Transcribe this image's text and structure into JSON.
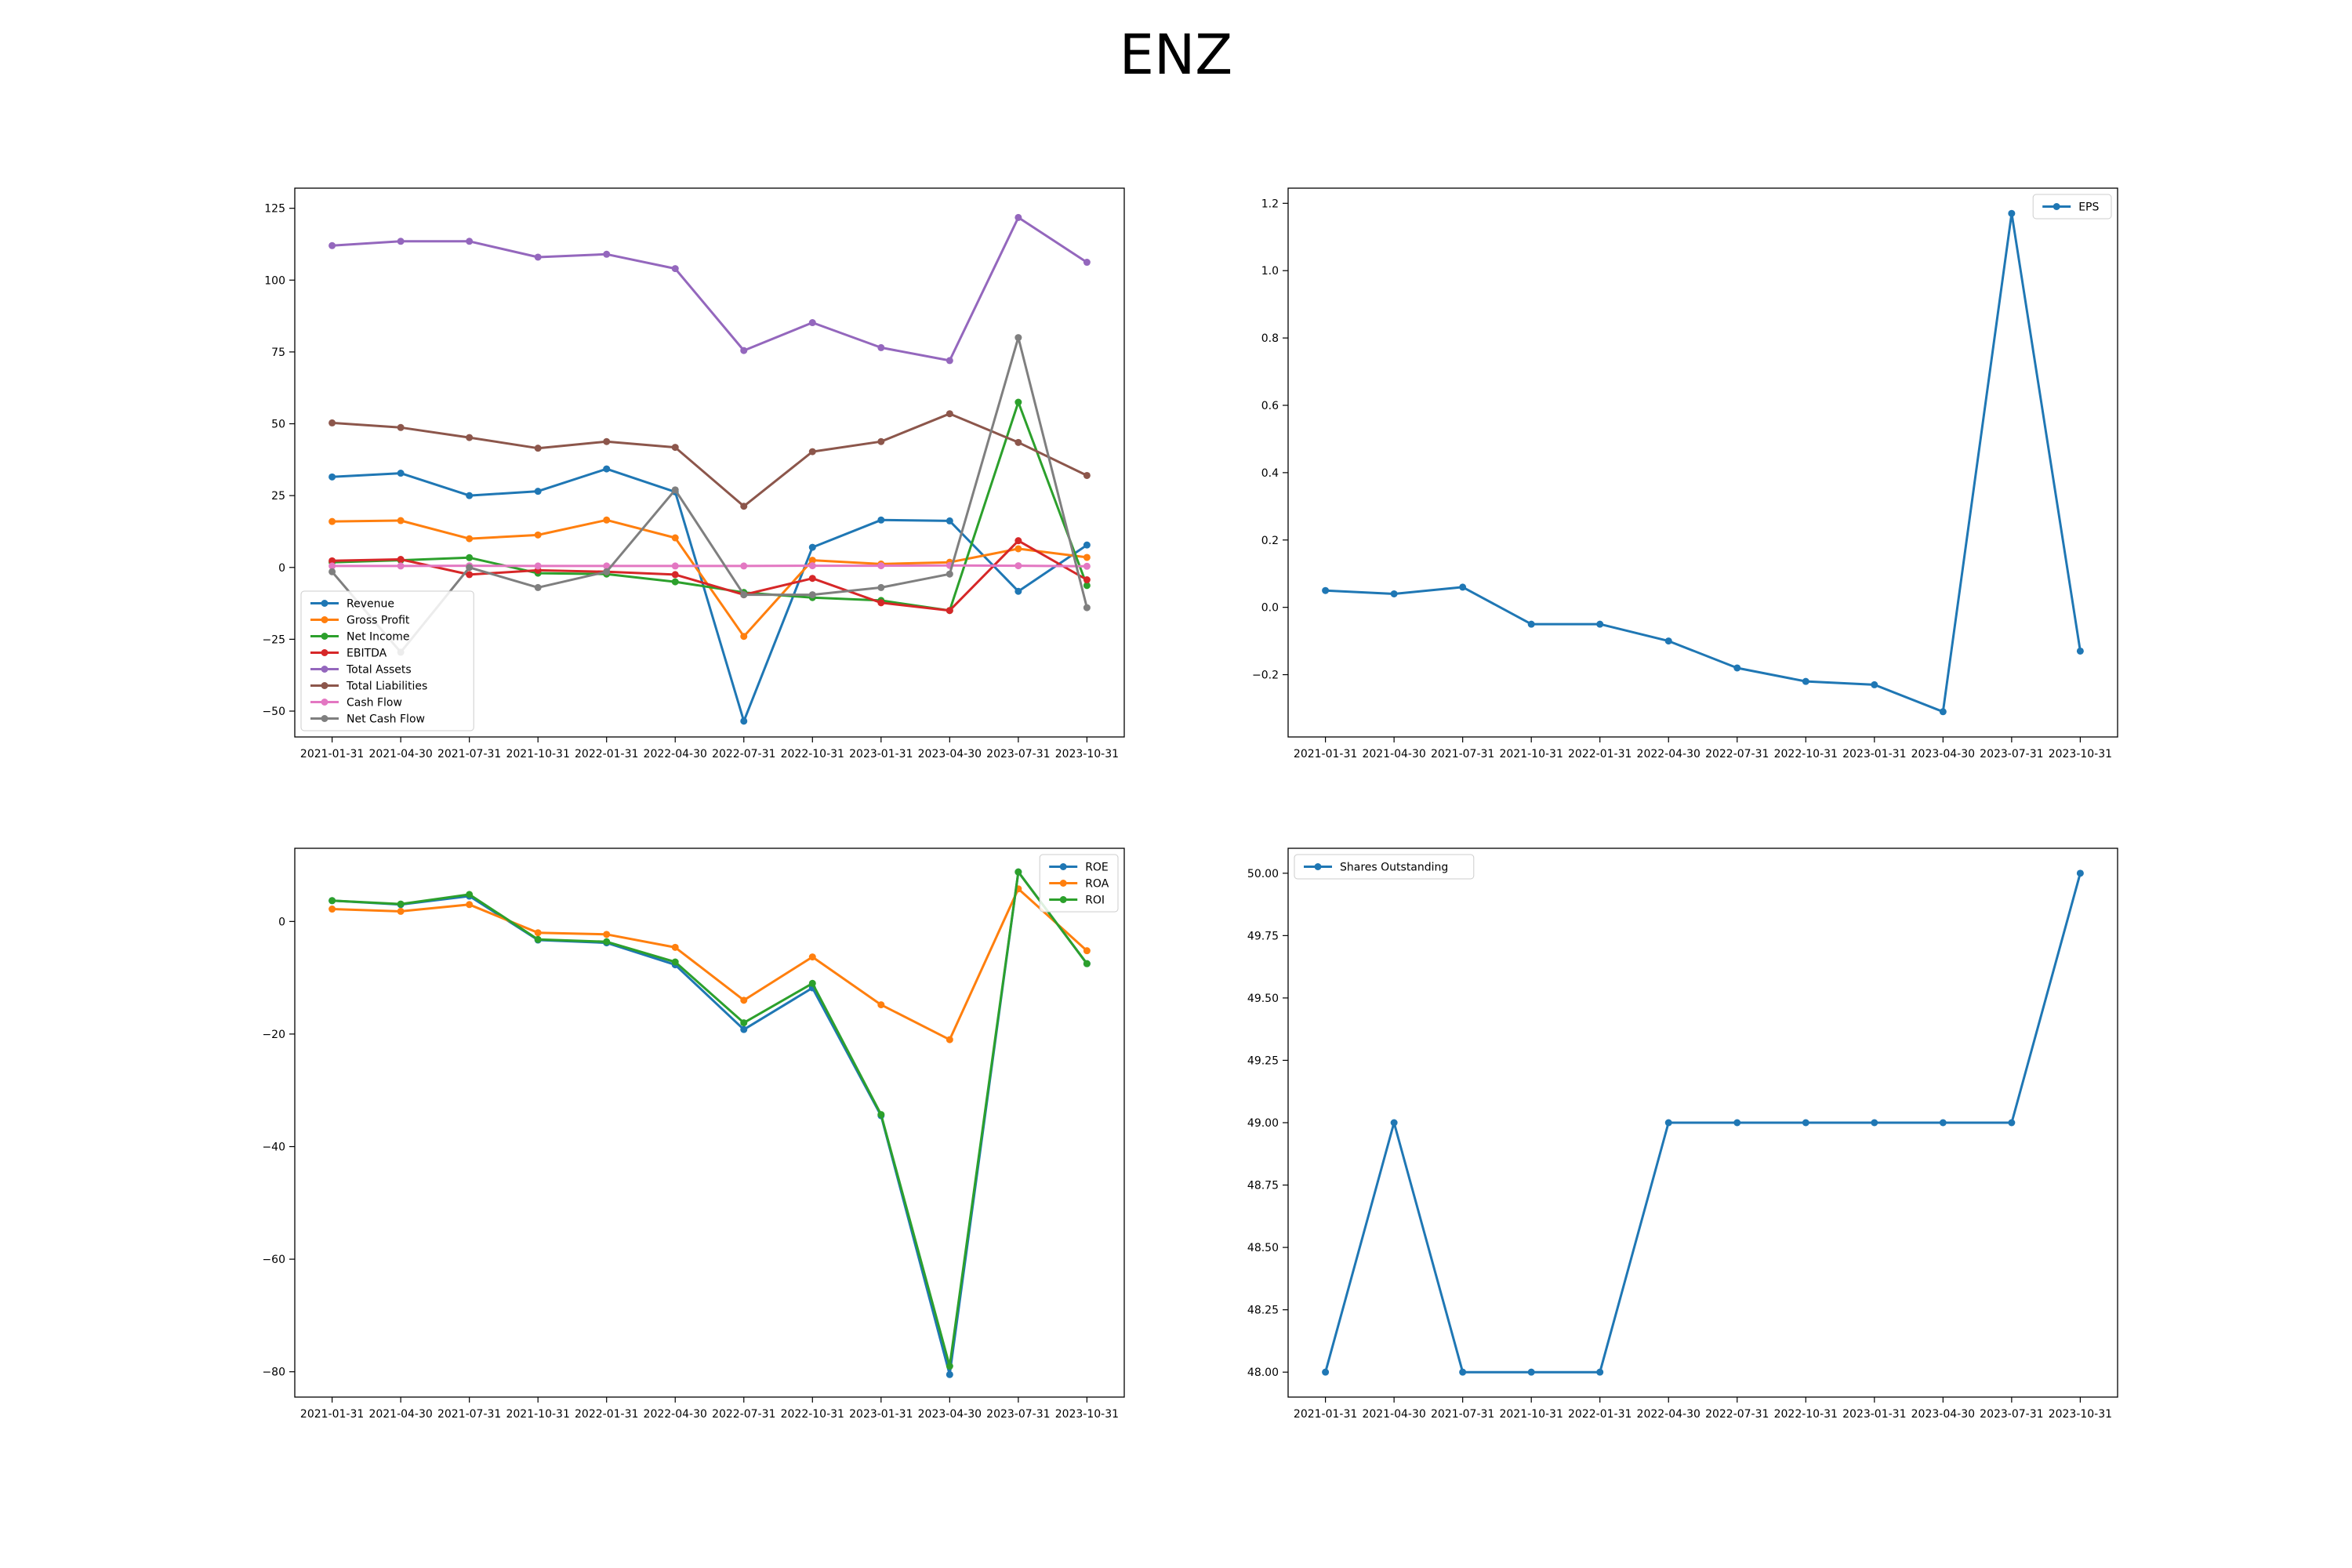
{
  "figure": {
    "title": "ENZ"
  },
  "chart_data": [
    {
      "type": "line",
      "x": [
        "2021-01-31",
        "2021-04-30",
        "2021-07-31",
        "2021-10-31",
        "2022-01-31",
        "2022-04-30",
        "2022-07-31",
        "2022-10-31",
        "2023-01-31",
        "2023-04-30",
        "2023-07-31",
        "2023-10-31"
      ],
      "yticks": [
        -50,
        -25,
        0,
        25,
        50,
        75,
        100,
        125
      ],
      "ylim": [
        -59,
        132
      ],
      "ytick_decimals": 0,
      "legend": "lower-left",
      "grid": false,
      "series": [
        {
          "name": "Revenue",
          "color": "#1f77b4",
          "values": [
            31.5,
            32.8,
            25,
            26.5,
            34.3,
            26.3,
            -53.5,
            7,
            16.5,
            16.2,
            -8.3,
            7.8
          ]
        },
        {
          "name": "Gross Profit",
          "color": "#ff7f0e",
          "values": [
            16,
            16.3,
            10,
            11.3,
            16.5,
            10.3,
            -24,
            2.5,
            1.2,
            1.8,
            6.5,
            3.5
          ]
        },
        {
          "name": "Net Income",
          "color": "#2ca02c",
          "values": [
            1.8,
            2.5,
            3.4,
            -2,
            -2.3,
            -5,
            -8.7,
            -10.5,
            -11.5,
            -15,
            57.5,
            -6.3
          ]
        },
        {
          "name": "EBITDA",
          "color": "#d62728",
          "values": [
            2.3,
            2.8,
            -2.5,
            -1,
            -1.5,
            -2.5,
            -9.5,
            -3.8,
            -12.3,
            -15,
            9.3,
            -4.3
          ]
        },
        {
          "name": "Total Assets",
          "color": "#9467bd",
          "values": [
            112,
            113.5,
            113.5,
            108,
            109,
            104,
            75.5,
            85.2,
            76.5,
            72,
            121.8,
            106.2
          ]
        },
        {
          "name": "Total Liabilities",
          "color": "#8c564b",
          "values": [
            50.3,
            48.7,
            45.2,
            41.5,
            43.8,
            41.8,
            21.3,
            40.3,
            43.8,
            53.5,
            43.5,
            32
          ]
        },
        {
          "name": "Cash Flow",
          "color": "#e377c2",
          "values": [
            0.5,
            0.5,
            0.6,
            0.5,
            0.5,
            0.5,
            0.5,
            0.6,
            0.6,
            0.7,
            0.6,
            0.4
          ]
        },
        {
          "name": "Net Cash Flow",
          "color": "#7f7f7f",
          "values": [
            -1.5,
            -29.5,
            0,
            -7,
            -1.5,
            27,
            -9.5,
            -9.5,
            -7,
            -2.3,
            80,
            -14
          ]
        }
      ]
    },
    {
      "type": "line",
      "x": [
        "2021-01-31",
        "2021-04-30",
        "2021-07-31",
        "2021-10-31",
        "2022-01-31",
        "2022-04-30",
        "2022-07-31",
        "2022-10-31",
        "2023-01-31",
        "2023-04-30",
        "2023-07-31",
        "2023-10-31"
      ],
      "yticks": [
        -0.2,
        0.0,
        0.2,
        0.4,
        0.6,
        0.8,
        1.0,
        1.2
      ],
      "ylim": [
        -0.385,
        1.245
      ],
      "ytick_decimals": 1,
      "legend": "upper-right",
      "grid": false,
      "series": [
        {
          "name": "EPS",
          "color": "#1f77b4",
          "values": [
            0.05,
            0.04,
            0.06,
            -0.05,
            -0.05,
            -0.1,
            -0.18,
            -0.22,
            -0.23,
            -0.31,
            1.17,
            -0.13
          ]
        }
      ]
    },
    {
      "type": "line",
      "x": [
        "2021-01-31",
        "2021-04-30",
        "2021-07-31",
        "2021-10-31",
        "2022-01-31",
        "2022-04-30",
        "2022-07-31",
        "2022-10-31",
        "2023-01-31",
        "2023-04-30",
        "2023-07-31",
        "2023-10-31"
      ],
      "yticks": [
        -80,
        -60,
        -40,
        -20,
        0
      ],
      "ylim": [
        -84.5,
        13
      ],
      "ytick_decimals": 0,
      "legend": "upper-right",
      "grid": false,
      "series": [
        {
          "name": "ROE",
          "color": "#1f77b4",
          "values": [
            3.7,
            3.0,
            4.5,
            -3.3,
            -3.8,
            -7.7,
            -19.2,
            -11.8,
            -34.5,
            -80.5,
            8.8,
            -7.5
          ]
        },
        {
          "name": "ROA",
          "color": "#ff7f0e",
          "values": [
            2.2,
            1.8,
            3,
            -2,
            -2.3,
            -4.6,
            -14,
            -6.3,
            -14.8,
            -21,
            5.8,
            -5.2
          ]
        },
        {
          "name": "ROI",
          "color": "#2ca02c",
          "values": [
            3.7,
            3.1,
            4.8,
            -3.2,
            -3.6,
            -7.2,
            -18,
            -11,
            -34.3,
            -79,
            8.8,
            -7.5
          ]
        }
      ]
    },
    {
      "type": "line",
      "x": [
        "2021-01-31",
        "2021-04-30",
        "2021-07-31",
        "2021-10-31",
        "2022-01-31",
        "2022-04-30",
        "2022-07-31",
        "2022-10-31",
        "2023-01-31",
        "2023-04-30",
        "2023-07-31",
        "2023-10-31"
      ],
      "yticks": [
        48.0,
        48.25,
        48.5,
        48.75,
        49.0,
        49.25,
        49.5,
        49.75,
        50.0
      ],
      "ylim": [
        47.9,
        50.1
      ],
      "ytick_decimals": 2,
      "legend": "upper-left",
      "grid": false,
      "series": [
        {
          "name": "Shares Outstanding",
          "color": "#1f77b4",
          "values": [
            48,
            49,
            48,
            48,
            48,
            49,
            49,
            49,
            49,
            49,
            49,
            50
          ]
        }
      ]
    }
  ]
}
